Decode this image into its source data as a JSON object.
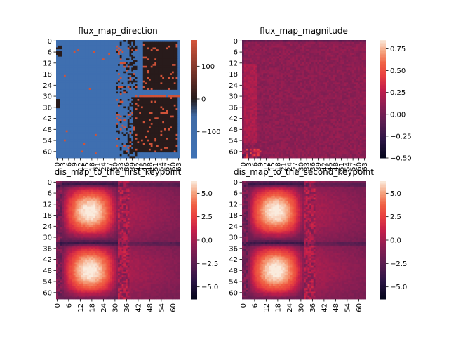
{
  "chart_data": [
    {
      "type": "heatmap",
      "title": "flux_map_direction",
      "rows": 64,
      "cols": 64,
      "y_tick_labels": [
        "0",
        "6",
        "12",
        "18",
        "24",
        "30",
        "36",
        "42",
        "48",
        "54",
        "60"
      ],
      "x_tick_labels": [
        "0",
        "3",
        "6",
        "9",
        "12",
        "15",
        "18",
        "21",
        "24",
        "27",
        "30",
        "33",
        "36",
        "39",
        "42",
        "45",
        "48",
        "51",
        "54",
        "57",
        "60",
        "63"
      ],
      "colorbar": {
        "ticks": [
          "100",
          "0",
          "−100"
        ],
        "tick_values": [
          100,
          0,
          -100
        ],
        "range": [
          -180,
          180
        ]
      },
      "colormap": "icefire-like",
      "colors": {
        "low": "#3f72b5",
        "mid": "#231a1a",
        "high": "#d5553a"
      },
      "pattern": "mostly low values (~-140) with blocks of ~180 / ~0 on right side"
    },
    {
      "type": "heatmap",
      "title": "flux_map_magnitude",
      "rows": 64,
      "cols": 64,
      "y_tick_labels": [
        "0",
        "6",
        "12",
        "18",
        "24",
        "30",
        "36",
        "42",
        "48",
        "54",
        "60"
      ],
      "x_tick_labels": [
        "0",
        "3",
        "6",
        "9",
        "12",
        "15",
        "18",
        "21",
        "24",
        "27",
        "30",
        "33",
        "36",
        "39",
        "42",
        "45",
        "48",
        "51",
        "54",
        "57",
        "60",
        "63"
      ],
      "colorbar": {
        "ticks": [
          "0.75",
          "0.50",
          "0.25",
          "0.00",
          "−0.25",
          "−0.50"
        ],
        "tick_values": [
          0.75,
          0.5,
          0.25,
          0,
          -0.25,
          -0.5
        ],
        "range": [
          -0.5,
          0.85
        ]
      },
      "colormap": "rocket",
      "value_typical": 0.1
    },
    {
      "type": "heatmap",
      "title": "dis_map_to_the_first_keypoint",
      "rows": 64,
      "cols": 64,
      "y_tick_labels": [
        "0",
        "6",
        "12",
        "18",
        "24",
        "30",
        "36",
        "42",
        "48",
        "54",
        "60"
      ],
      "x_tick_labels": [
        "0",
        "6",
        "12",
        "18",
        "24",
        "30",
        "36",
        "42",
        "48",
        "54",
        "60"
      ],
      "colorbar": {
        "ticks": [
          "5.0",
          "2.5",
          "0.0",
          "−2.5",
          "−5.0"
        ],
        "tick_values": [
          5,
          2.5,
          0,
          -2.5,
          -5
        ],
        "range": [
          -6.3,
          6.3
        ]
      },
      "colormap": "rocket"
    },
    {
      "type": "heatmap",
      "title": "dis_map_to_the_second_keypoint",
      "rows": 64,
      "cols": 64,
      "y_tick_labels": [
        "0",
        "6",
        "12",
        "18",
        "24",
        "30",
        "36",
        "42",
        "48",
        "54",
        "60"
      ],
      "x_tick_labels": [
        "0",
        "6",
        "12",
        "18",
        "24",
        "30",
        "36",
        "42",
        "48",
        "54",
        "60"
      ],
      "colorbar": {
        "ticks": [
          "5.0",
          "2.5",
          "0.0",
          "−2.5",
          "−5.0"
        ],
        "tick_values": [
          5,
          2.5,
          0,
          -2.5,
          -5
        ],
        "range": [
          -6.3,
          6.3
        ]
      },
      "colormap": "rocket"
    }
  ]
}
